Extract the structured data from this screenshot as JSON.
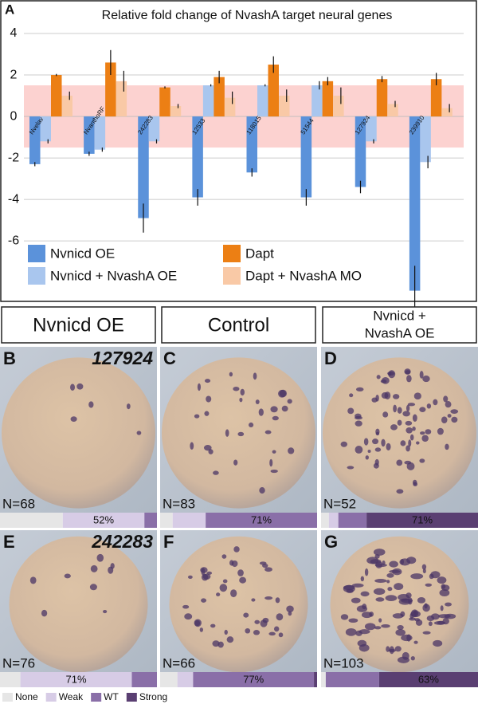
{
  "chart_data": {
    "type": "bar",
    "panel_label": "A",
    "title": "Relative fold change of NvashA target neural genes",
    "categories": [
      "Nvelav",
      "NvanthoRF",
      "242283",
      "12533",
      "118015",
      "51544",
      "127924",
      "239910"
    ],
    "series": [
      {
        "name": "Nvnicd OE",
        "color": "#5b92da",
        "values": [
          -2.3,
          -1.8,
          -4.9,
          -3.9,
          -2.7,
          -3.9,
          -3.4,
          -8.4
        ],
        "errors": [
          0.1,
          0.1,
          0.7,
          0.4,
          0.2,
          0.4,
          0.3,
          1.2
        ]
      },
      {
        "name": "Nvnicd + NvashA OE",
        "color": "#a9c6ee",
        "values": [
          -1.2,
          -1.6,
          -1.2,
          1.5,
          1.5,
          1.5,
          -1.2,
          -2.2
        ],
        "errors": [
          0.1,
          0.1,
          0.1,
          0.05,
          0.05,
          0.2,
          0.1,
          0.3
        ]
      },
      {
        "name": "Dapt",
        "color": "#ec7f14",
        "values": [
          2.0,
          2.6,
          1.4,
          1.9,
          2.5,
          1.7,
          1.8,
          1.8
        ],
        "errors": [
          0.05,
          0.6,
          0.05,
          0.3,
          0.4,
          0.2,
          0.15,
          0.3
        ]
      },
      {
        "name": "Dapt + NvashA MO",
        "color": "#f9c9a6",
        "values": [
          1.0,
          1.7,
          0.5,
          0.9,
          1.0,
          1.0,
          0.6,
          0.4
        ],
        "errors": [
          0.2,
          0.5,
          0.1,
          0.3,
          0.3,
          0.4,
          0.15,
          0.2
        ]
      }
    ],
    "ylim": [
      -8.8,
      4
    ],
    "yticks": [
      4,
      2,
      0,
      -2,
      -4,
      -6
    ],
    "grid": true,
    "threshold_band": [
      -1.5,
      1.5
    ],
    "band_color": "#fcd2d0"
  },
  "headers": [
    [
      "Nvnicd OE"
    ],
    [
      "Control"
    ],
    [
      "Nvnicd +",
      "NvashA OE"
    ]
  ],
  "panels": [
    {
      "letter": "B",
      "gene": "127924",
      "n_label": "N=68",
      "distribution": {
        "values": [
          40,
          52,
          8,
          0
        ],
        "value_labels": [
          null,
          "52%",
          null,
          null
        ]
      }
    },
    {
      "letter": "C",
      "n_label": "N=83",
      "distribution": {
        "values": [
          8,
          21,
          71,
          0
        ],
        "value_labels": [
          null,
          null,
          "71%",
          null
        ]
      }
    },
    {
      "letter": "D",
      "n_label": "N=52",
      "distribution": {
        "values": [
          5,
          6,
          18,
          71
        ],
        "value_labels": [
          null,
          null,
          null,
          "71%"
        ]
      }
    },
    {
      "letter": "E",
      "gene": "242283",
      "n_label": "N=76",
      "distribution": {
        "values": [
          13,
          71,
          16,
          0
        ],
        "value_labels": [
          null,
          "71%",
          null,
          null
        ]
      }
    },
    {
      "letter": "F",
      "n_label": "N=66",
      "distribution": {
        "values": [
          11,
          10,
          77,
          2
        ],
        "value_labels": [
          null,
          null,
          "77%",
          null
        ]
      }
    },
    {
      "letter": "G",
      "n_label": "N=103",
      "distribution": {
        "values": [
          3,
          0,
          34,
          63
        ],
        "value_labels": [
          null,
          null,
          null,
          "63%"
        ]
      }
    }
  ],
  "distribution_legend": [
    {
      "name": "None",
      "color": "#e6e6e6"
    },
    {
      "name": "Weak",
      "color": "#d7cce6"
    },
    {
      "name": "WT",
      "color": "#8a6fa8"
    },
    {
      "name": "Strong",
      "color": "#5a3f72"
    }
  ]
}
